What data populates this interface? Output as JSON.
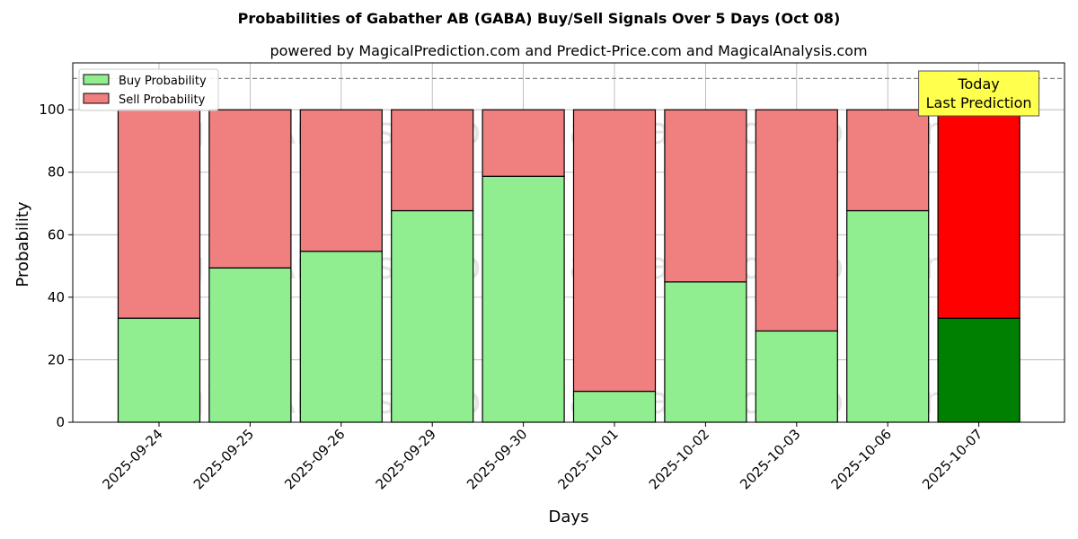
{
  "chart_data": {
    "type": "bar",
    "stacked": true,
    "title": "Probabilities of Gabather AB (GABA) Buy/Sell Signals Over 5 Days (Oct 08)",
    "subtitle": "powered by MagicalPrediction.com and Predict-Price.com and MagicalAnalysis.com",
    "xlabel": "Days",
    "ylabel": "Probability",
    "ylim": [
      0,
      115
    ],
    "yticks": [
      "0",
      "20",
      "40",
      "60",
      "80",
      "100"
    ],
    "grid": true,
    "legend_position": "top-left",
    "reference_line": 110,
    "categories": [
      "2025-09-24",
      "2025-09-25",
      "2025-09-26",
      "2025-09-29",
      "2025-09-30",
      "2025-10-01",
      "2025-10-02",
      "2025-10-03",
      "2025-10-06",
      "2025-10-07"
    ],
    "series": [
      {
        "name": "Buy Probability",
        "color": "#90ee90",
        "highlight_color": "#008000",
        "values": [
          33.3,
          49.4,
          54.7,
          67.7,
          78.7,
          9.9,
          44.9,
          29.2,
          67.7,
          33.3
        ]
      },
      {
        "name": "Sell Probability",
        "color": "#f08080",
        "highlight_color": "#ff0000",
        "values": [
          66.7,
          50.6,
          45.3,
          32.3,
          21.3,
          90.1,
          55.1,
          70.8,
          32.3,
          66.7
        ]
      }
    ],
    "highlight_index": 9,
    "annotation": {
      "lines": [
        "Today",
        "Last Prediction"
      ],
      "background": "#ffff4d"
    },
    "watermarks": [
      "MagicalAnalysis.com",
      "MagicalPrediction.com"
    ]
  }
}
